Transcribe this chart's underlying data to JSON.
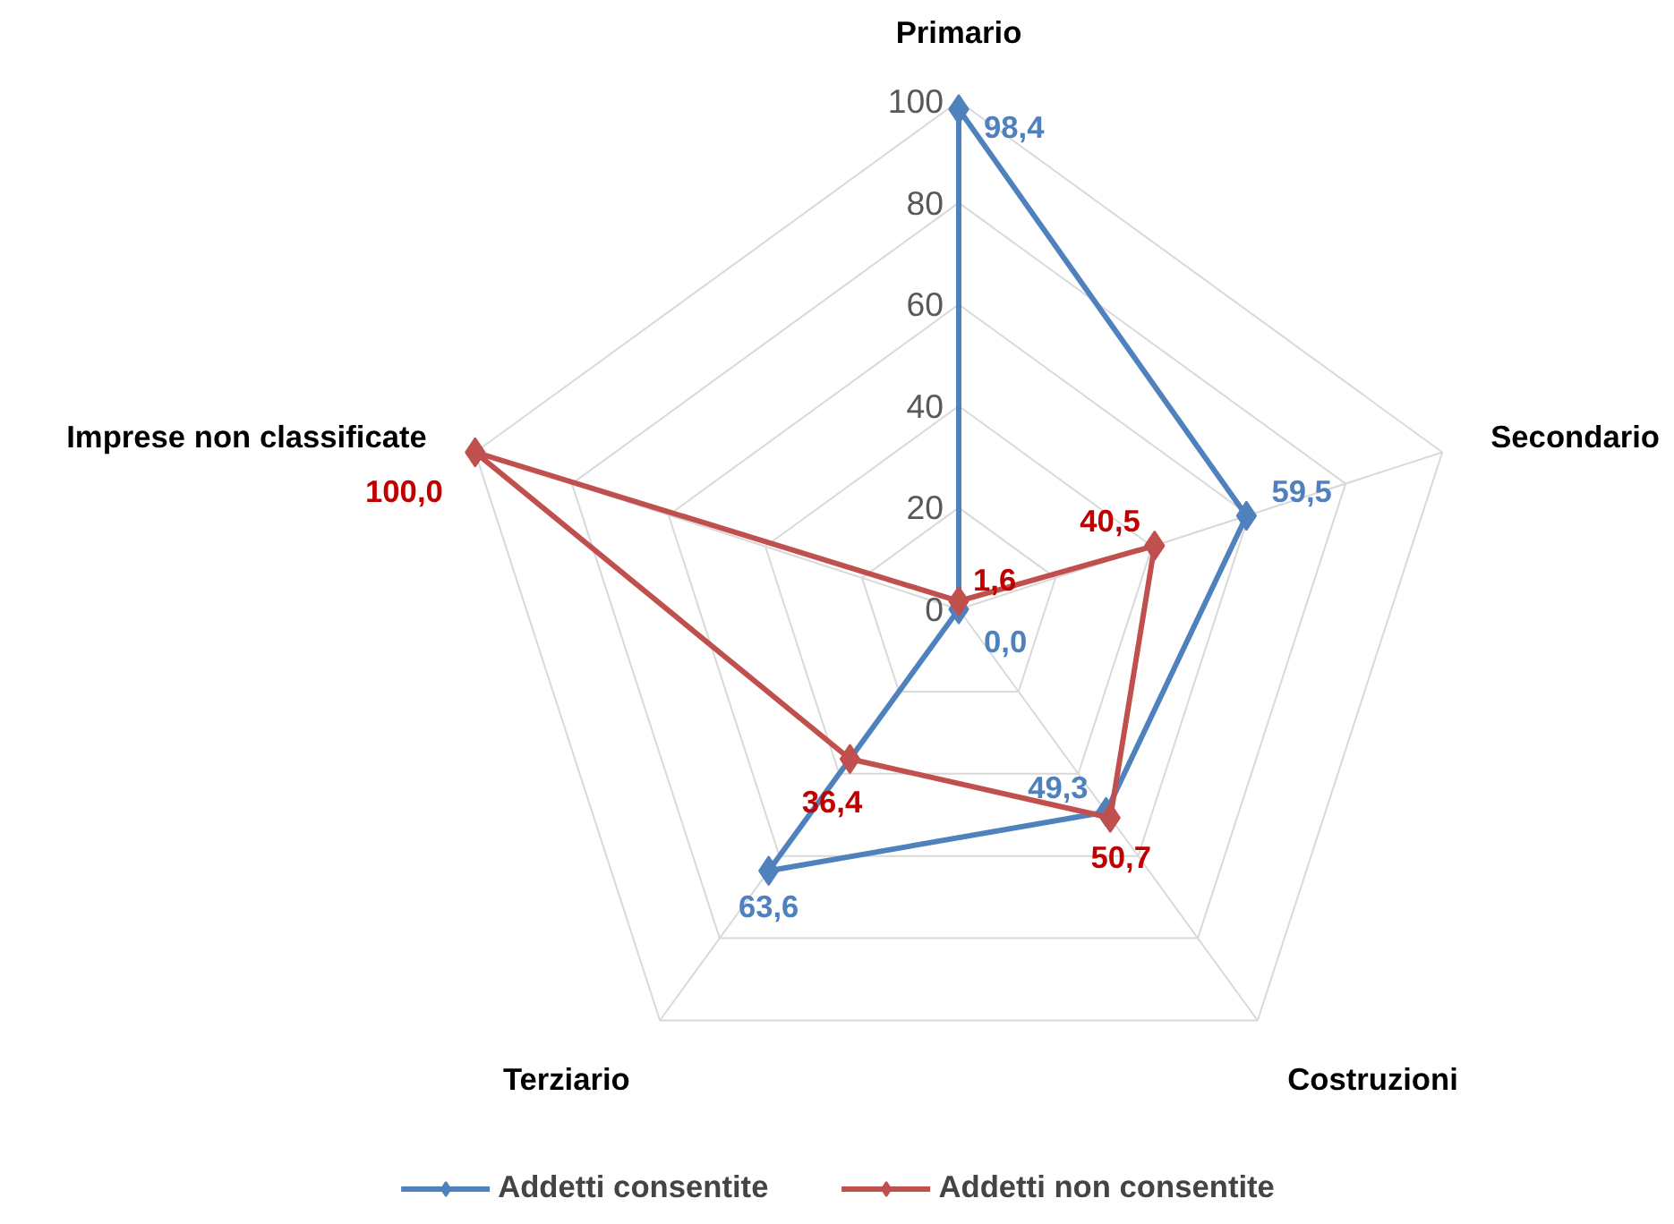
{
  "chart_data": {
    "type": "radar",
    "categories": [
      "Primario",
      "Secondario",
      "Costruzioni",
      "Terziario",
      "Imprese non classificate"
    ],
    "series": [
      {
        "name": "Addetti consentite",
        "color": "#4f81bd",
        "values": [
          98.4,
          59.5,
          49.3,
          63.6,
          0.0
        ],
        "value_labels": [
          "98,4",
          "59,5",
          "49,3",
          "63,6",
          "0,0"
        ]
      },
      {
        "name": "Addetti non consentite",
        "color": "#c0504d",
        "values": [
          1.6,
          40.5,
          50.7,
          36.4,
          100.0
        ],
        "value_labels": [
          "1,6",
          "40,5",
          "50,7",
          "36,4",
          "100,0"
        ]
      }
    ],
    "ylim": [
      0,
      100
    ],
    "yticks": [
      0,
      20,
      40,
      60,
      80,
      100
    ],
    "grid": true,
    "legend": "bottom",
    "marker": "diamond",
    "line_style": "solid"
  }
}
